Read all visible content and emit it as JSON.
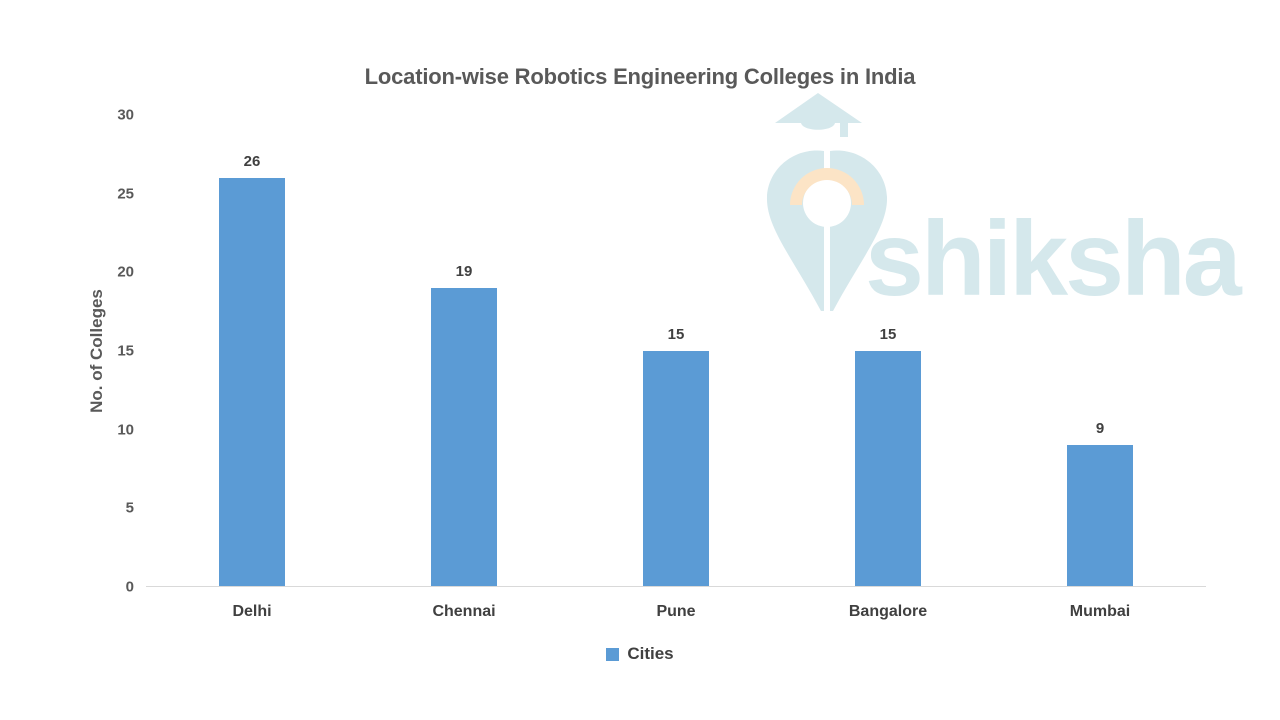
{
  "chart_data": {
    "type": "bar",
    "title": "Location-wise Robotics Engineering Colleges in India",
    "categories": [
      "Delhi",
      "Chennai",
      "Pune",
      "Bangalore",
      "Mumbai"
    ],
    "series": [
      {
        "name": "Cities",
        "values": [
          26,
          19,
          15,
          15,
          9
        ]
      }
    ],
    "xlabel": "",
    "ylabel": "No. of Colleges",
    "ylim": [
      0,
      30
    ],
    "yticks": [
      0,
      5,
      10,
      15,
      20,
      25,
      30
    ],
    "grid": false,
    "data_labels": true,
    "legend_position": "bottom-center",
    "bar_color": "#5b9bd5"
  },
  "legend": {
    "label": "Cities",
    "swatch_color": "#5b9bd5"
  },
  "watermark": {
    "text": "shiksha",
    "color": "#d5e8ec",
    "accent_color": "#fce4c6"
  },
  "colors": {
    "background": "#ffffff",
    "bar": "#5b9bd5",
    "title_text": "#595959",
    "tick_text": "#595959",
    "label_text": "#404040",
    "axis_line": "#d9d9d9"
  }
}
